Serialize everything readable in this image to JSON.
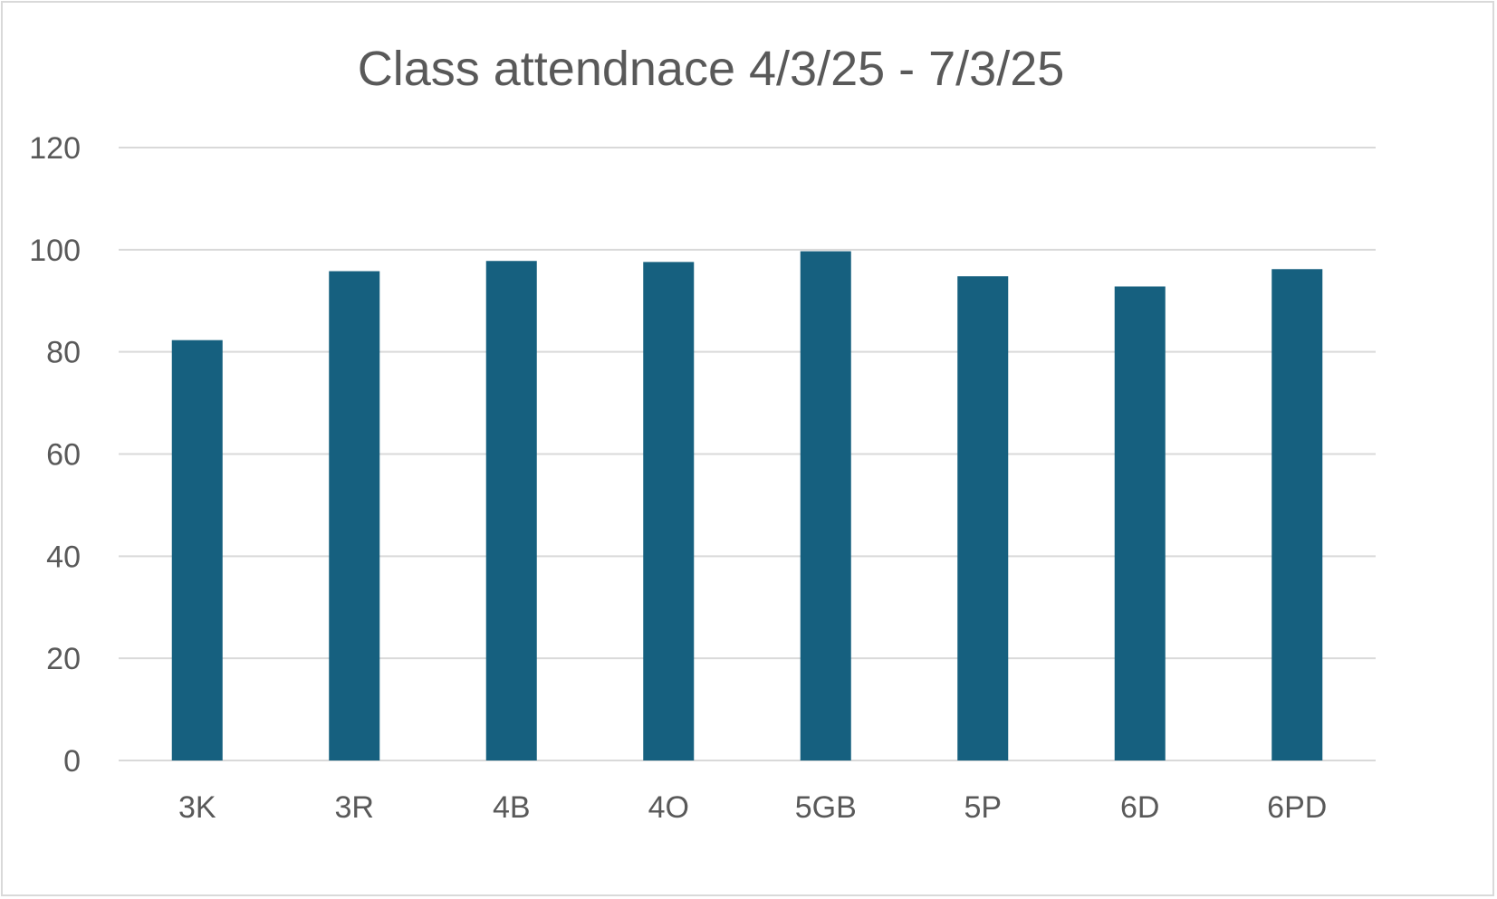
{
  "chart_data": {
    "type": "bar",
    "title": "Class attendnace 4/3/25 - 7/3/25",
    "xlabel": "",
    "ylabel": "",
    "categories": [
      "3K",
      "3R",
      "4B",
      "4O",
      "5GB",
      "5P",
      "6D",
      "6PD"
    ],
    "values": [
      82.3,
      95.8,
      97.8,
      97.6,
      99.7,
      94.8,
      92.8,
      96.2
    ],
    "ylim": [
      0,
      120
    ],
    "yticks": [
      0,
      20,
      40,
      60,
      80,
      100,
      120
    ],
    "grid": true,
    "legend": "none",
    "bar_color": "#16607f"
  }
}
